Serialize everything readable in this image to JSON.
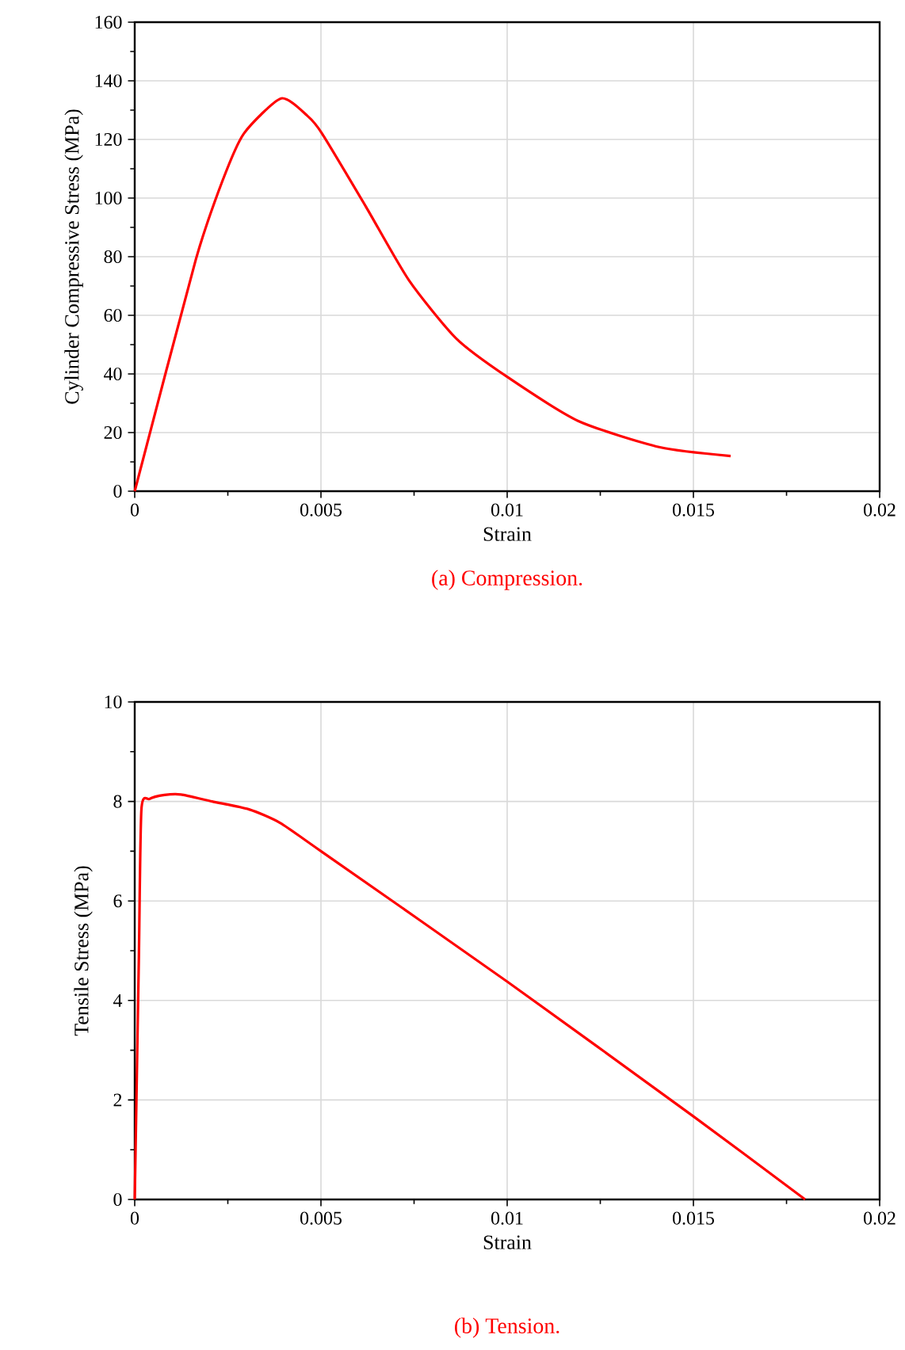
{
  "chart_data": [
    {
      "type": "line",
      "xlabel": "Strain",
      "ylabel": "Cylinder Compressive Stress (MPa)",
      "annotations": [
        "(a) Compression."
      ],
      "grid": true,
      "xlim": [
        0,
        0.02
      ],
      "ylim": [
        0,
        160
      ],
      "xticks": [
        0,
        0.005,
        0.01,
        0.015,
        0.02
      ],
      "yticks": [
        0,
        20,
        40,
        60,
        80,
        100,
        120,
        140,
        160
      ],
      "x": [
        0,
        0.00164,
        0.00236,
        0.00293,
        0.00393,
        0.00464,
        0.00503,
        0.00621,
        0.00736,
        0.00864,
        0.01,
        0.0119,
        0.0141,
        0.016
      ],
      "series": [
        {
          "color": "#ff0000",
          "values": [
            0,
            79,
            106,
            122,
            134,
            128,
            122,
            97,
            72,
            52,
            39,
            24,
            15,
            12
          ]
        }
      ]
    },
    {
      "type": "line",
      "xlabel": "Strain",
      "ylabel": "Tensile Stress (MPa)",
      "annotations": [
        "(b) Tension."
      ],
      "grid": true,
      "xlim": [
        0,
        0.02
      ],
      "ylim": [
        0,
        10
      ],
      "xticks": [
        0,
        0.005,
        0.01,
        0.015,
        0.02
      ],
      "yticks": [
        0,
        2,
        4,
        6,
        8,
        10
      ],
      "x": [
        0,
        0.00011,
        0.00018,
        0.0004,
        0.0008,
        0.00124,
        0.00208,
        0.00307,
        0.0039,
        0.005,
        0.01,
        0.015,
        0.018
      ],
      "series": [
        {
          "color": "#ff0000",
          "values": [
            0,
            4.8,
            7.84,
            8.05,
            8.13,
            8.14,
            8.0,
            7.84,
            7.57,
            7.0,
            4.38,
            1.67,
            0
          ]
        }
      ]
    }
  ]
}
